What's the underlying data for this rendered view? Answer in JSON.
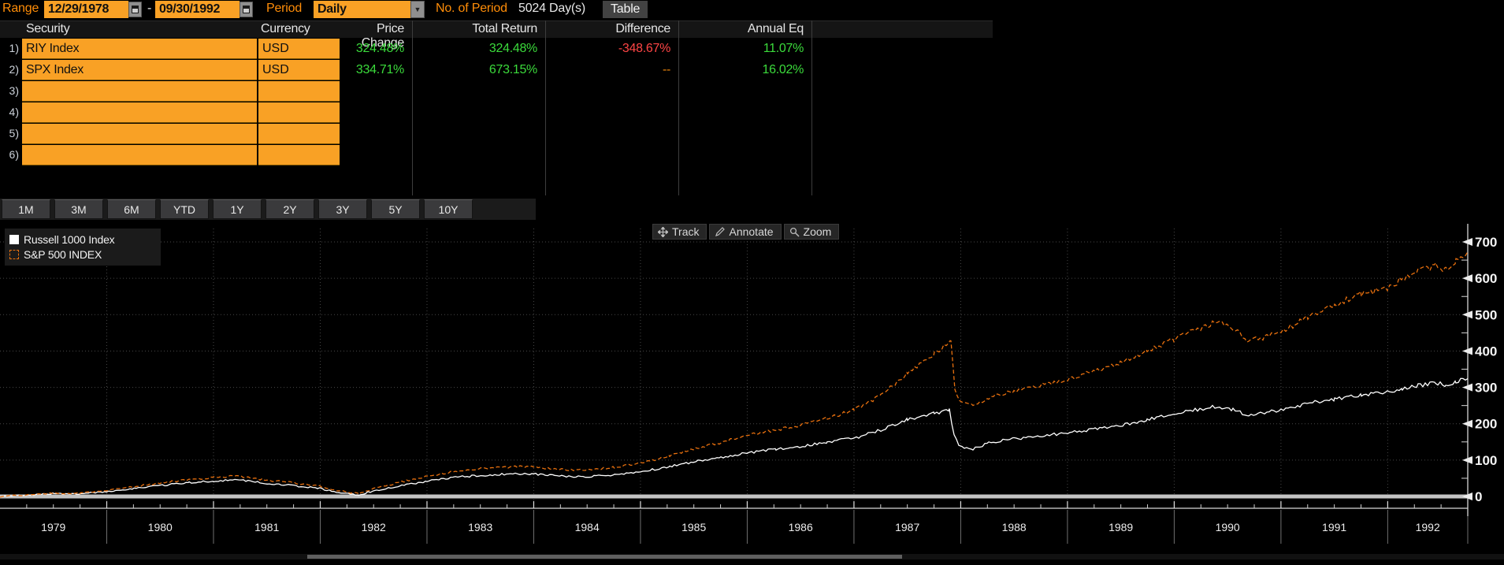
{
  "topbar": {
    "range_label": "Range",
    "range_start": "12/29/1978",
    "range_dash": "-",
    "range_end": "09/30/1992",
    "period_label": "Period",
    "period_value": "Daily",
    "num_period_label": "No. of Period",
    "num_period_value": "5024 Day(s)",
    "table_button": "Table"
  },
  "table": {
    "headers": [
      "Security",
      "Currency",
      "Price Change",
      "Total Return",
      "Difference",
      "Annual Eq"
    ],
    "rows": [
      {
        "num": "1)",
        "security": "RIY Index",
        "currency": "USD",
        "price_change": "324.48%",
        "total_return": "324.48%",
        "difference": "-348.67%",
        "annual_eq": "11.07%"
      },
      {
        "num": "2)",
        "security": "SPX Index",
        "currency": "USD",
        "price_change": "334.71%",
        "total_return": "673.15%",
        "difference": "--",
        "annual_eq": "16.02%"
      },
      {
        "num": "3)",
        "security": "",
        "currency": "",
        "price_change": "",
        "total_return": "",
        "difference": "",
        "annual_eq": ""
      },
      {
        "num": "4)",
        "security": "",
        "currency": "",
        "price_change": "",
        "total_return": "",
        "difference": "",
        "annual_eq": ""
      },
      {
        "num": "5)",
        "security": "",
        "currency": "",
        "price_change": "",
        "total_return": "",
        "difference": "",
        "annual_eq": ""
      },
      {
        "num": "6)",
        "security": "",
        "currency": "",
        "price_change": "",
        "total_return": "",
        "difference": "",
        "annual_eq": ""
      }
    ]
  },
  "periods": [
    "1M",
    "3M",
    "6M",
    "YTD",
    "1Y",
    "2Y",
    "3Y",
    "5Y",
    "10Y"
  ],
  "chart_toolbar": [
    {
      "label": "Track",
      "icon": "track-icon"
    },
    {
      "label": "Annotate",
      "icon": "annotate-icon"
    },
    {
      "label": "Zoom",
      "icon": "zoom-icon"
    }
  ],
  "legend": [
    {
      "label": "Russell 1000 Index",
      "color": "#ffffff",
      "style": "solid"
    },
    {
      "label": "S&P 500 INDEX",
      "color": "#e8700e",
      "style": "dashed"
    }
  ],
  "colors": {
    "amber": "#f9a125",
    "label_orange": "#ff8d08",
    "green": "#3bdb3b",
    "red": "#ff4545",
    "dash_orange": "#e8820c",
    "series_white": "#ffffff",
    "series_orange": "#e8700e"
  },
  "chart_data": {
    "type": "line",
    "title": "",
    "xlabel": "",
    "ylabel": "",
    "x_years": [
      1979,
      1980,
      1981,
      1982,
      1983,
      1984,
      1985,
      1986,
      1987,
      1988,
      1989,
      1990,
      1991,
      1992
    ],
    "x_span_years": 13.75,
    "yticks": [
      0,
      100,
      200,
      300,
      400,
      500,
      600,
      700
    ],
    "ylim": [
      -35,
      755
    ],
    "grid": "dotted",
    "legend_position": "top-left",
    "series": [
      {
        "name": "Russell 1000 Index",
        "metric": "Price Change",
        "color": "#ffffff",
        "style": "solid",
        "end_value": 324.48,
        "points": [
          [
            0,
            0
          ],
          [
            40,
            4
          ],
          [
            68,
            8
          ],
          [
            100,
            6
          ],
          [
            135,
            14
          ],
          [
            170,
            22
          ],
          [
            203,
            30
          ],
          [
            240,
            38
          ],
          [
            271,
            42
          ],
          [
            300,
            46
          ],
          [
            339,
            36
          ],
          [
            370,
            30
          ],
          [
            406,
            22
          ],
          [
            430,
            10
          ],
          [
            455,
            4
          ],
          [
            475,
            16
          ],
          [
            510,
            30
          ],
          [
            542,
            42
          ],
          [
            575,
            52
          ],
          [
            610,
            58
          ],
          [
            645,
            62
          ],
          [
            677,
            62
          ],
          [
            710,
            56
          ],
          [
            745,
            54
          ],
          [
            780,
            60
          ],
          [
            813,
            68
          ],
          [
            850,
            82
          ],
          [
            880,
            95
          ],
          [
            915,
            108
          ],
          [
            948,
            120
          ],
          [
            985,
            130
          ],
          [
            1016,
            138
          ],
          [
            1050,
            150
          ],
          [
            1084,
            160
          ],
          [
            1118,
            183
          ],
          [
            1152,
            212
          ],
          [
            1186,
            228
          ],
          [
            1205,
            238
          ],
          [
            1211,
            170
          ],
          [
            1218,
            138
          ],
          [
            1235,
            130
          ],
          [
            1255,
            148
          ],
          [
            1287,
            158
          ],
          [
            1320,
            165
          ],
          [
            1355,
            175
          ],
          [
            1390,
            185
          ],
          [
            1422,
            196
          ],
          [
            1456,
            210
          ],
          [
            1490,
            228
          ],
          [
            1524,
            240
          ],
          [
            1545,
            248
          ],
          [
            1565,
            238
          ],
          [
            1585,
            222
          ],
          [
            1605,
            230
          ],
          [
            1626,
            238
          ],
          [
            1660,
            256
          ],
          [
            1694,
            268
          ],
          [
            1728,
            280
          ],
          [
            1761,
            288
          ],
          [
            1780,
            296
          ],
          [
            1800,
            305
          ],
          [
            1822,
            312
          ],
          [
            1835,
            306
          ],
          [
            1848,
            316
          ],
          [
            1863,
            324
          ]
        ]
      },
      {
        "name": "S&P 500 INDEX",
        "metric": "Total Return",
        "color": "#e8700e",
        "style": "dashed",
        "end_value": 673.15,
        "points": [
          [
            0,
            0
          ],
          [
            40,
            5
          ],
          [
            68,
            9
          ],
          [
            100,
            8
          ],
          [
            135,
            17
          ],
          [
            170,
            27
          ],
          [
            203,
            37
          ],
          [
            240,
            46
          ],
          [
            271,
            52
          ],
          [
            300,
            56
          ],
          [
            339,
            45
          ],
          [
            370,
            38
          ],
          [
            406,
            28
          ],
          [
            430,
            15
          ],
          [
            455,
            8
          ],
          [
            475,
            22
          ],
          [
            510,
            40
          ],
          [
            542,
            56
          ],
          [
            575,
            68
          ],
          [
            610,
            76
          ],
          [
            645,
            81
          ],
          [
            677,
            82
          ],
          [
            710,
            74
          ],
          [
            745,
            72
          ],
          [
            780,
            80
          ],
          [
            813,
            92
          ],
          [
            850,
            112
          ],
          [
            880,
            130
          ],
          [
            915,
            148
          ],
          [
            948,
            168
          ],
          [
            985,
            182
          ],
          [
            1016,
            196
          ],
          [
            1050,
            215
          ],
          [
            1084,
            238
          ],
          [
            1118,
            278
          ],
          [
            1152,
            340
          ],
          [
            1186,
            392
          ],
          [
            1203,
            420
          ],
          [
            1207,
            424
          ],
          [
            1212,
            300
          ],
          [
            1218,
            262
          ],
          [
            1235,
            250
          ],
          [
            1255,
            272
          ],
          [
            1287,
            290
          ],
          [
            1320,
            305
          ],
          [
            1355,
            322
          ],
          [
            1390,
            345
          ],
          [
            1422,
            368
          ],
          [
            1456,
            400
          ],
          [
            1490,
            432
          ],
          [
            1524,
            462
          ],
          [
            1545,
            482
          ],
          [
            1565,
            462
          ],
          [
            1585,
            428
          ],
          [
            1605,
            438
          ],
          [
            1626,
            450
          ],
          [
            1660,
            495
          ],
          [
            1694,
            528
          ],
          [
            1728,
            558
          ],
          [
            1761,
            572
          ],
          [
            1780,
            600
          ],
          [
            1800,
            618
          ],
          [
            1822,
            636
          ],
          [
            1835,
            622
          ],
          [
            1848,
            648
          ],
          [
            1863,
            673
          ]
        ]
      }
    ]
  }
}
